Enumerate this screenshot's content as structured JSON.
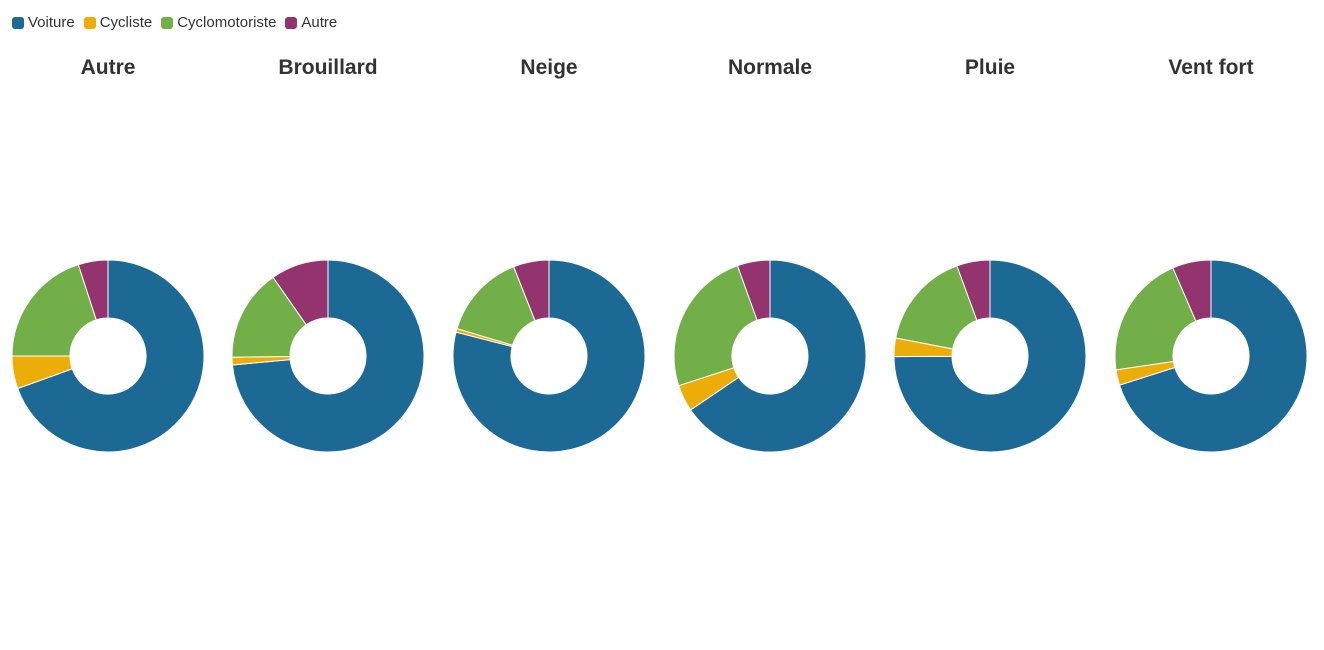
{
  "legend": [
    {
      "label": "Voiture",
      "color": "#1d6996"
    },
    {
      "label": "Cycliste",
      "color": "#edad08"
    },
    {
      "label": "Cyclomotoriste",
      "color": "#73af48"
    },
    {
      "label": "Autre",
      "color": "#94346e"
    }
  ],
  "chart_data": {
    "type": "pie",
    "variant": "donut",
    "categories": [
      "Voiture",
      "Cycliste",
      "Cyclomotoriste",
      "Autre"
    ],
    "colors": [
      "#1d6996",
      "#edad08",
      "#73af48",
      "#94346e"
    ],
    "legend_position": "top-left",
    "charts": [
      {
        "title": "Autre",
        "values": [
          69.5,
          5.5,
          20.0,
          5.0
        ]
      },
      {
        "title": "Brouillard",
        "values": [
          73.5,
          1.3,
          15.5,
          9.7
        ]
      },
      {
        "title": "Neige",
        "values": [
          79.0,
          0.6,
          14.4,
          6.0
        ]
      },
      {
        "title": "Normale",
        "values": [
          65.5,
          4.5,
          24.5,
          5.5
        ]
      },
      {
        "title": "Pluie",
        "values": [
          74.9,
          3.1,
          16.4,
          5.6
        ]
      },
      {
        "title": "Vent fort",
        "values": [
          70.1,
          2.6,
          20.8,
          6.5
        ]
      }
    ]
  }
}
